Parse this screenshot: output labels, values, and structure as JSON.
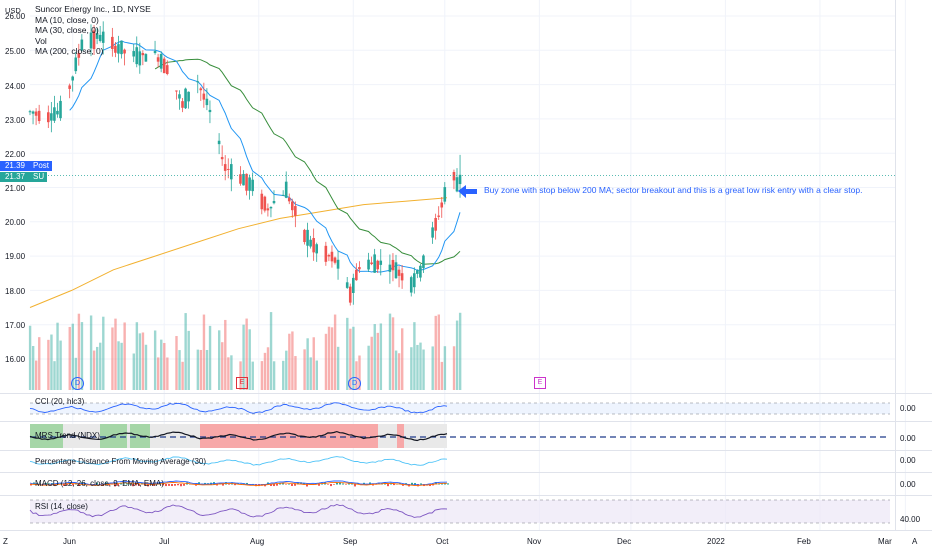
{
  "header": {
    "symbol_title": "Suncor Energy Inc., 1D, NYSE",
    "currency": "USD",
    "studies": [
      "MA (10, close, 0)",
      "MA (30, close, 0)",
      "Vol",
      "MA (200, close, 0)"
    ]
  },
  "price_axis": {
    "labels": [
      "26.00",
      "25.00",
      "24.00",
      "23.00",
      "22.00",
      "21.00",
      "20.00",
      "19.00",
      "18.00",
      "17.00",
      "16.00"
    ]
  },
  "price_tags": {
    "post_value": "21.39",
    "post_label": "Post",
    "su_value": "21.37",
    "su_label": "SU"
  },
  "annotation": {
    "text": "Buy zone with stop below 200 MA; sector breakout and this is a great low risk entry with a clear stop."
  },
  "events": {
    "dividend": "D",
    "earnings": "E"
  },
  "panes": {
    "cci": {
      "label": "CCI (20, hlc3)",
      "value": "0.00"
    },
    "mrs": {
      "label": "MRS Trend (NDX)",
      "value": "0.00"
    },
    "pct": {
      "label": "Percentage Distance From Moving Average (30)",
      "value": "0.00"
    },
    "macd": {
      "label": "MACD (12, 26, close, 9, EMA, EMA)",
      "value": "0.00"
    },
    "rsi": {
      "label": "RSI (14, close)",
      "value": "40.00"
    }
  },
  "time_axis": {
    "labels": [
      "Jun",
      "Jul",
      "Aug",
      "Sep",
      "Oct",
      "Nov",
      "Dec",
      "2022",
      "Feb",
      "Mar"
    ]
  },
  "corner_left": "Z",
  "corner_right": "A",
  "colors": {
    "up": "#26a69a",
    "down": "#ef5350",
    "ma10": "#2196f3",
    "ma30": "#388e3c",
    "ma200": "#f2b130",
    "accent": "#2962ff"
  },
  "chart_data": {
    "type": "candlestick",
    "title": "Suncor Energy Inc., 1D, NYSE",
    "ylim": [
      15.5,
      26.2
    ],
    "x_range": [
      "2021-05-18",
      "2022-03-10"
    ],
    "ohlc_sample": [
      {
        "date": "2021-05-19",
        "o": 23.2,
        "h": 23.6,
        "l": 22.8,
        "c": 23.4
      },
      {
        "date": "2021-05-26",
        "o": 23.0,
        "h": 23.2,
        "l": 22.9,
        "c": 23.1
      },
      {
        "date": "2021-06-02",
        "o": 24.0,
        "h": 25.4,
        "l": 24.0,
        "c": 25.3
      },
      {
        "date": "2021-06-14",
        "o": 25.5,
        "h": 25.8,
        "l": 25.0,
        "c": 25.1
      },
      {
        "date": "2021-06-25",
        "o": 24.9,
        "h": 25.1,
        "l": 24.4,
        "c": 24.6
      },
      {
        "date": "2021-07-08",
        "o": 23.6,
        "h": 23.9,
        "l": 23.0,
        "c": 23.2
      },
      {
        "date": "2021-07-20",
        "o": 21.8,
        "h": 22.0,
        "l": 21.1,
        "c": 21.3
      },
      {
        "date": "2021-08-03",
        "o": 20.8,
        "h": 21.1,
        "l": 20.3,
        "c": 20.5
      },
      {
        "date": "2021-08-19",
        "o": 19.3,
        "h": 19.6,
        "l": 18.8,
        "c": 18.9
      },
      {
        "date": "2021-08-30",
        "o": 17.6,
        "h": 18.2,
        "l": 17.5,
        "c": 18.1
      },
      {
        "date": "2021-09-10",
        "o": 18.6,
        "h": 19.2,
        "l": 18.5,
        "c": 19.0
      },
      {
        "date": "2021-09-21",
        "o": 18.3,
        "h": 18.5,
        "l": 18.0,
        "c": 18.2
      },
      {
        "date": "2021-09-27",
        "o": 19.6,
        "h": 20.2,
        "l": 19.5,
        "c": 20.1
      },
      {
        "date": "2021-10-05",
        "o": 21.0,
        "h": 21.6,
        "l": 20.9,
        "c": 21.4
      },
      {
        "date": "2021-10-06",
        "o": 21.3,
        "h": 21.8,
        "l": 20.7,
        "c": 20.9
      }
    ],
    "series": [
      {
        "name": "MA (10, close, 0)",
        "values": [
          23.0,
          24.8,
          24.9,
          23.8,
          22.0,
          20.5,
          19.5,
          18.9,
          18.6,
          19.0,
          20.7
        ]
      },
      {
        "name": "MA (30, close, 0)",
        "values": [
          22.0,
          23.8,
          24.4,
          24.2,
          22.5,
          20.8,
          19.5,
          18.6,
          18.7,
          18.8,
          19.4
        ]
      },
      {
        "name": "MA (200, close, 0)",
        "values": [
          17.5,
          18.0,
          18.6,
          19.0,
          19.4,
          19.8,
          20.1,
          20.3,
          20.5,
          20.6,
          20.7
        ]
      }
    ],
    "last_price": 21.37,
    "post_price": 21.39
  }
}
